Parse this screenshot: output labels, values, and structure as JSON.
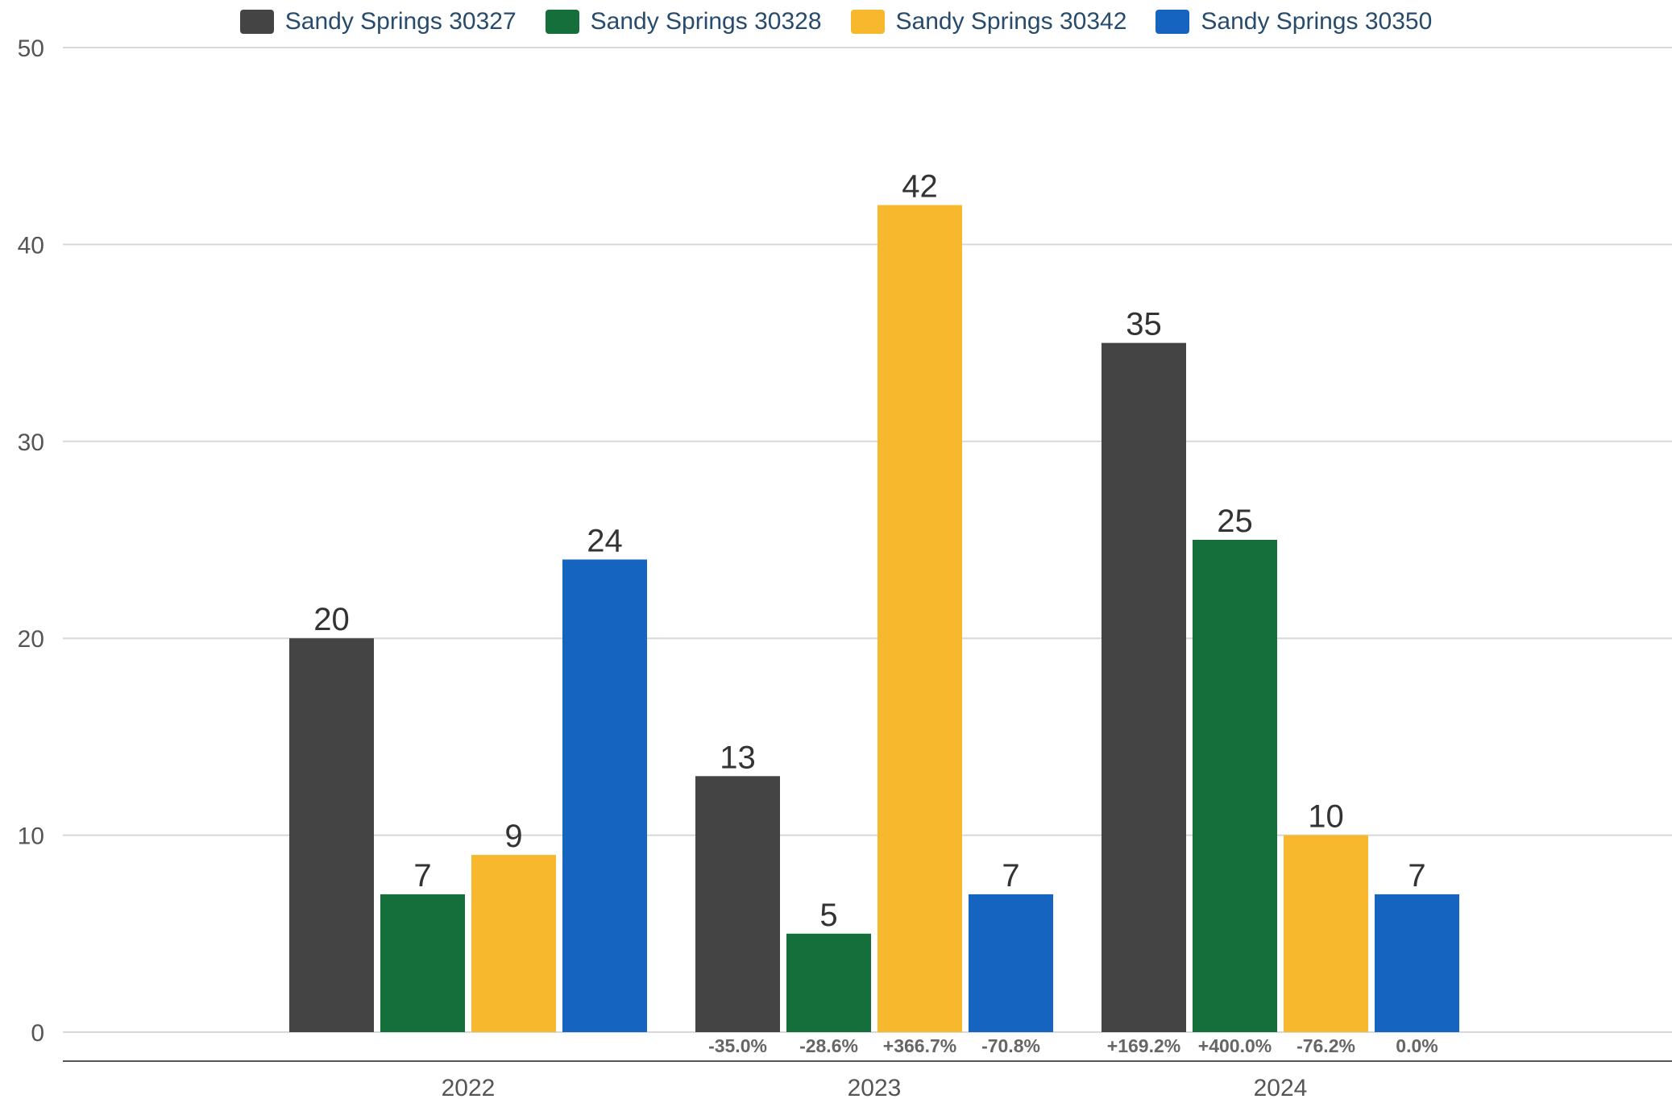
{
  "chart_data": {
    "type": "bar",
    "title": "",
    "xlabel": "",
    "ylabel": "",
    "categories": [
      "2022",
      "2023",
      "2024"
    ],
    "ylim": [
      0,
      50
    ],
    "yticks": [
      0,
      10,
      20,
      30,
      40,
      50
    ],
    "grid": true,
    "legend_position": "top-center",
    "series": [
      {
        "name": "Sandy Springs 30327",
        "color": "#444444",
        "values": [
          20,
          13,
          35
        ],
        "changes": [
          "",
          "-35.0%",
          "+169.2%"
        ]
      },
      {
        "name": "Sandy Springs 30328",
        "color": "#146f3a",
        "values": [
          7,
          5,
          25
        ],
        "changes": [
          "",
          "-28.6%",
          "+400.0%"
        ]
      },
      {
        "name": "Sandy Springs 30342",
        "color": "#f8b82e",
        "values": [
          9,
          42,
          10
        ],
        "changes": [
          "",
          "+366.7%",
          "-76.2%"
        ]
      },
      {
        "name": "Sandy Springs 30350",
        "color": "#1565c0",
        "values": [
          24,
          7,
          7
        ],
        "changes": [
          "",
          "-70.8%",
          "0.0%"
        ]
      }
    ]
  }
}
